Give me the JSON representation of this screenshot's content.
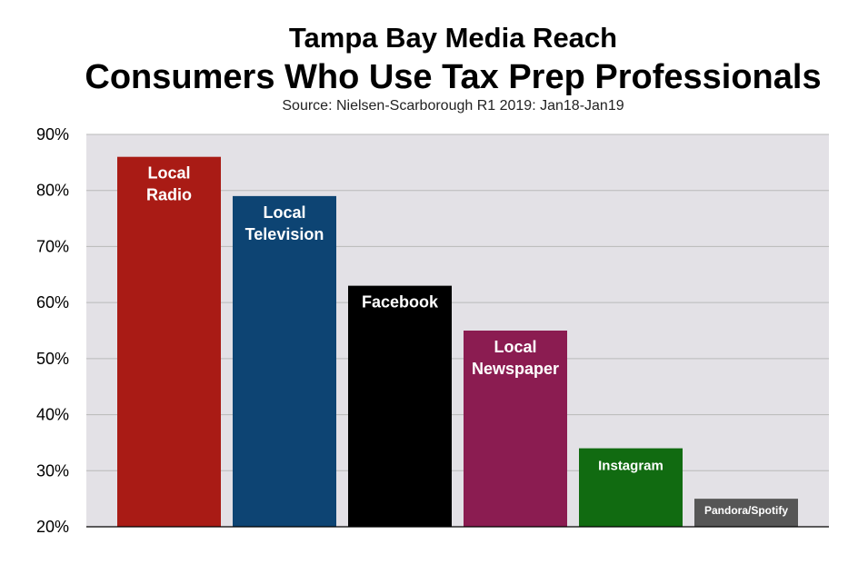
{
  "header": {
    "title": "Tampa Bay Media Reach",
    "subtitle": "Consumers Who Use Tax Prep Professionals",
    "source": "Source: Nielsen-Scarborough R1 2019: Jan18-Jan19"
  },
  "chart_data": {
    "type": "bar",
    "title": "Tampa Bay Media Reach",
    "subtitle": "Consumers Who Use Tax Prep Professionals",
    "xlabel": "",
    "ylabel": "",
    "ylim": [
      20,
      90
    ],
    "yticks": [
      "20%",
      "30%",
      "40%",
      "50%",
      "60%",
      "70%",
      "80%",
      "90%"
    ],
    "ytick_values": [
      20,
      30,
      40,
      50,
      60,
      70,
      80,
      90
    ],
    "grid": true,
    "legend": "none",
    "plot_background": "#e3e1e6",
    "grid_color": "#b9b9b9",
    "bars": [
      {
        "label_lines": [
          "Local",
          "Radio"
        ],
        "value": 86,
        "color": "#a91b15"
      },
      {
        "label_lines": [
          "Local",
          "Television"
        ],
        "value": 79,
        "color": "#0d4473"
      },
      {
        "label_lines": [
          "Facebook"
        ],
        "value": 63,
        "color": "#000000"
      },
      {
        "label_lines": [
          "Local",
          "Newspaper"
        ],
        "value": 55,
        "color": "#8b1c51"
      },
      {
        "label_lines": [
          "Instagram"
        ],
        "value": 34,
        "color": "#116b11"
      },
      {
        "label_lines": [
          "Pandora/Spotify"
        ],
        "value": 25,
        "color": "#565656"
      }
    ]
  }
}
